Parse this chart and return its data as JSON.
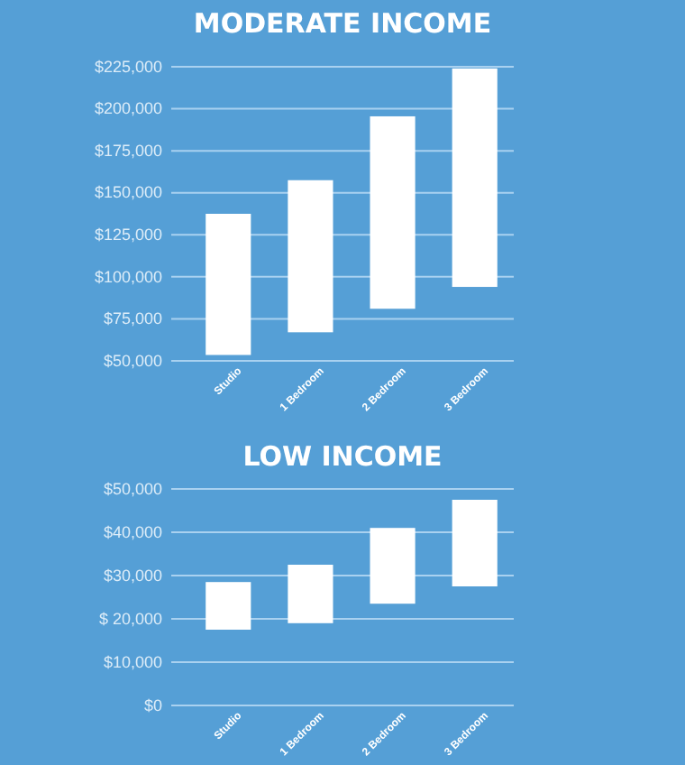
{
  "chart_data": [
    {
      "type": "bar",
      "title": "MODERATE INCOME",
      "categories": [
        "Studio",
        "1 Bedroom",
        "2 Bedroom",
        "3 Bedroom"
      ],
      "values": [
        84000,
        90500,
        114500,
        130000
      ],
      "base": [
        53500,
        67000,
        81000,
        94000
      ],
      "color": "#ffffff",
      "ylim": [
        50000,
        225000
      ],
      "yticks": [
        {
          "value": 50000,
          "label": "$50,000"
        },
        {
          "value": 75000,
          "label": "$75,000"
        },
        {
          "value": 100000,
          "label": "$100,000"
        },
        {
          "value": 125000,
          "label": "$125,000"
        },
        {
          "value": 150000,
          "label": "$150,000"
        },
        {
          "value": 175000,
          "label": "$175,000"
        },
        {
          "value": 200000,
          "label": "$200,000"
        },
        {
          "value": 225000,
          "label": "$225,000"
        }
      ],
      "grid": "y"
    },
    {
      "type": "bar",
      "title": "LOW INCOME",
      "categories": [
        "Studio",
        "1 Bedroom",
        "2 Bedroom",
        "3 Bedroom"
      ],
      "values": [
        11000,
        13500,
        17500,
        20000
      ],
      "base": [
        17500,
        19000,
        23500,
        27500
      ],
      "color": "#ffffff",
      "ylim": [
        0,
        50000
      ],
      "yticks": [
        {
          "value": 0,
          "label": "$0"
        },
        {
          "value": 10000,
          "label": "$10,000"
        },
        {
          "value": 20000,
          "label": "$ 20,000"
        },
        {
          "value": 30000,
          "label": "$30,000"
        },
        {
          "value": 40000,
          "label": "$40,000"
        },
        {
          "value": 50000,
          "label": "$50,000"
        }
      ],
      "grid": "y"
    }
  ]
}
